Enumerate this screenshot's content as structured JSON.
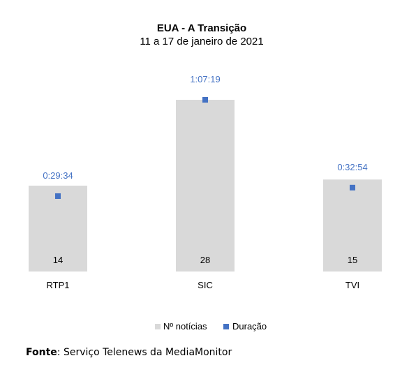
{
  "chart_data": {
    "type": "bar",
    "title": "EUA - A Transição",
    "subtitle": "11 a 17 de janeiro de 2021",
    "categories": [
      "RTP1",
      "SIC",
      "TVI"
    ],
    "series": [
      {
        "name": "Nº notícias",
        "type": "bar",
        "values": [
          14,
          28,
          15
        ]
      },
      {
        "name": "Duração",
        "type": "scatter",
        "values": [
          "0:29:34",
          "1:07:19",
          "0:32:54"
        ],
        "seconds": [
          1774,
          4039,
          1974
        ]
      }
    ],
    "legend_position": "bottom",
    "grid": false,
    "colors": {
      "bar": "#d9d9d9",
      "marker": "#4472c4",
      "duration_label": "#4472c4"
    }
  },
  "source": {
    "label": "Fonte",
    "text": ": Serviço Telenews da MediaMonitor"
  }
}
